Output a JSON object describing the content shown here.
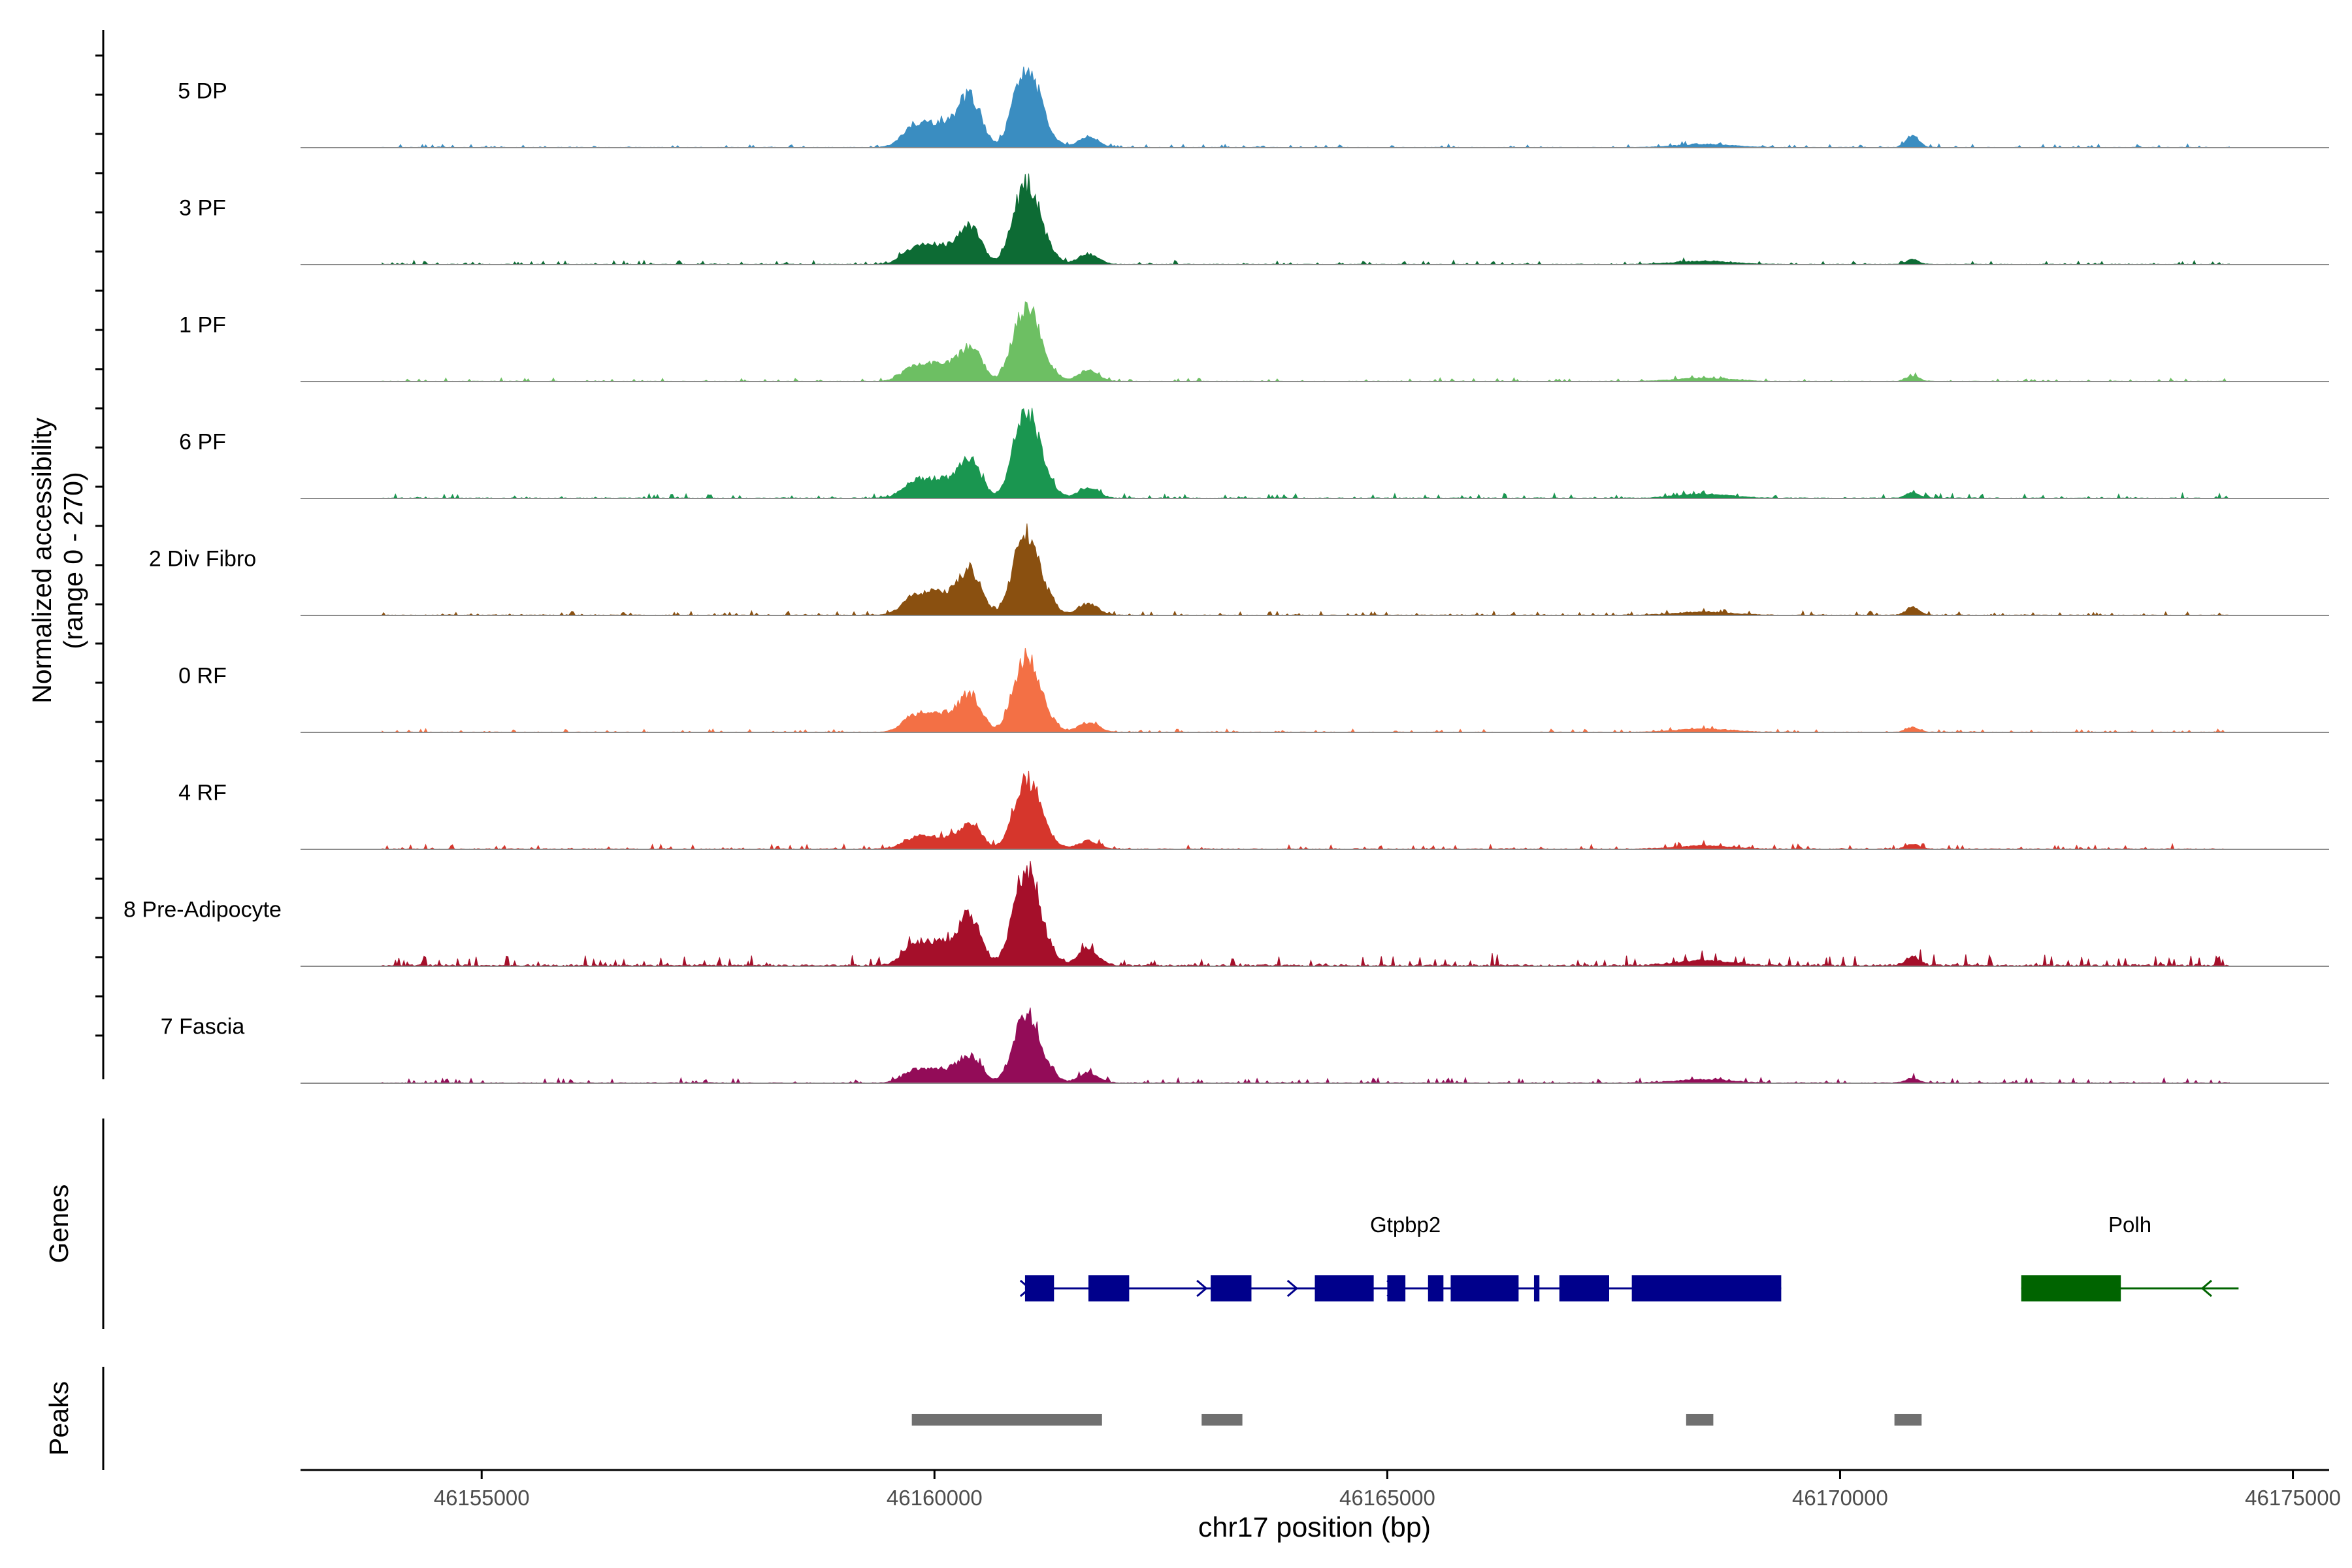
{
  "chart_data": {
    "type": "area",
    "ylabel_line1": "Normalized accessibility",
    "ylabel_line2": "(range 0 - 270)",
    "y_range": [
      0,
      270
    ],
    "xlabel": "chr17 position (bp)",
    "xlim": [
      46153000,
      46175400
    ],
    "x_ticks": [
      46155000,
      46160000,
      46165000,
      46170000,
      46175000
    ],
    "x_tick_labels": [
      "46155000",
      "46160000",
      "46165000",
      "46170000",
      "46175000"
    ],
    "tracks": [
      {
        "name": "5 DP",
        "color": "#3a8dc1",
        "peak_a": 175,
        "peak_b": 170,
        "side": 26,
        "tail": 4,
        "far": 30,
        "noise": 4
      },
      {
        "name": "3 PF",
        "color": "#0d6b34",
        "peak_a": 130,
        "peak_b": 175,
        "side": 26,
        "tail": 4,
        "far": 12,
        "noise": 5
      },
      {
        "name": "1 PF",
        "color": "#6dbf63",
        "peak_a": 120,
        "peak_b": 165,
        "side": 26,
        "tail": 4,
        "far": 14,
        "noise": 4
      },
      {
        "name": "6 PF",
        "color": "#1a9650",
        "peak_a": 135,
        "peak_b": 185,
        "side": 26,
        "tail": 5,
        "far": 14,
        "noise": 6
      },
      {
        "name": "2 Div Fibro",
        "color": "#8a5010",
        "peak_a": 155,
        "peak_b": 180,
        "side": 28,
        "tail": 4,
        "far": 20,
        "noise": 5
      },
      {
        "name": "0 RF",
        "color": "#f37045",
        "peak_a": 130,
        "peak_b": 165,
        "side": 24,
        "tail": 4,
        "far": 12,
        "noise": 4
      },
      {
        "name": "4 RF",
        "color": "#d6362c",
        "peak_a": 85,
        "peak_b": 150,
        "side": 20,
        "tail": 4,
        "far": 12,
        "noise": 6
      },
      {
        "name": "8 Pre-Adipocyte",
        "color": "#a50f2a",
        "peak_a": 170,
        "peak_b": 205,
        "side": 40,
        "tail": 6,
        "far": 24,
        "noise": 14
      },
      {
        "name": "7 Fascia",
        "color": "#930c58",
        "peak_a": 95,
        "peak_b": 150,
        "side": 24,
        "tail": 4,
        "far": 10,
        "noise": 6
      }
    ],
    "genes_panel_label": "Genes",
    "genes": [
      {
        "name": "Gtpbp2",
        "color": "#00008b",
        "strand": "+",
        "start": 46161000,
        "end": 46169350,
        "exons": [
          [
            46161000,
            46161320
          ],
          [
            46161700,
            46162150
          ],
          [
            46163050,
            46163500
          ],
          [
            46164200,
            46164850
          ],
          [
            46165000,
            46165200
          ],
          [
            46165450,
            46165620
          ],
          [
            46165700,
            46166450
          ],
          [
            46166620,
            46166680
          ],
          [
            46166900,
            46167450
          ],
          [
            46167700,
            46169350
          ]
        ]
      },
      {
        "name": "Polh",
        "color": "#006400",
        "strand": "-",
        "start": 46172000,
        "end": 46174400,
        "exons": [
          [
            46172000,
            46173100
          ]
        ]
      }
    ],
    "peaks_panel_label": "Peaks",
    "peaks_color": "#707070",
    "peaks": [
      [
        46159750,
        46161850
      ],
      [
        46162950,
        46163400
      ],
      [
        46168300,
        46168600
      ],
      [
        46170600,
        46170900
      ]
    ]
  }
}
